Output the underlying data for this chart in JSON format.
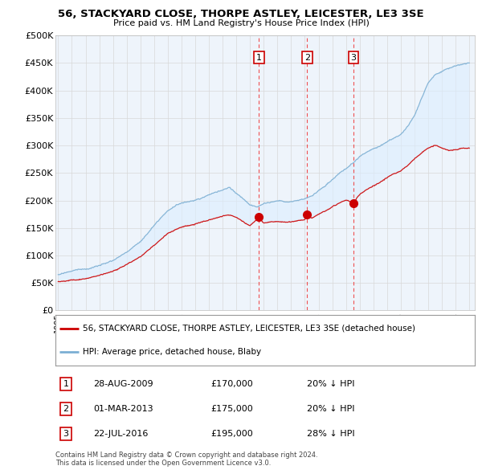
{
  "title": "56, STACKYARD CLOSE, THORPE ASTLEY, LEICESTER, LE3 3SE",
  "subtitle": "Price paid vs. HM Land Registry's House Price Index (HPI)",
  "red_label": "56, STACKYARD CLOSE, THORPE ASTLEY, LEICESTER, LE3 3SE (detached house)",
  "blue_label": "HPI: Average price, detached house, Blaby",
  "footer1": "Contains HM Land Registry data © Crown copyright and database right 2024.",
  "footer2": "This data is licensed under the Open Government Licence v3.0.",
  "transactions": [
    {
      "num": 1,
      "date": "28-AUG-2009",
      "year": 2009.66,
      "price": 170000,
      "pct": "20%",
      "dir": "↓"
    },
    {
      "num": 2,
      "date": "01-MAR-2013",
      "year": 2013.17,
      "price": 175000,
      "pct": "20%",
      "dir": "↓"
    },
    {
      "num": 3,
      "date": "22-JUL-2016",
      "year": 2016.55,
      "price": 195000,
      "pct": "28%",
      "dir": "↓"
    }
  ],
  "ylim": [
    0,
    500000
  ],
  "yticks": [
    0,
    50000,
    100000,
    150000,
    200000,
    250000,
    300000,
    350000,
    400000,
    450000,
    500000
  ],
  "background_color": "#ffffff",
  "grid_color": "#d8d8d8",
  "red_color": "#cc0000",
  "blue_color": "#7bafd4",
  "fill_color": "#ddeeff",
  "vline_color": "#ee3333"
}
